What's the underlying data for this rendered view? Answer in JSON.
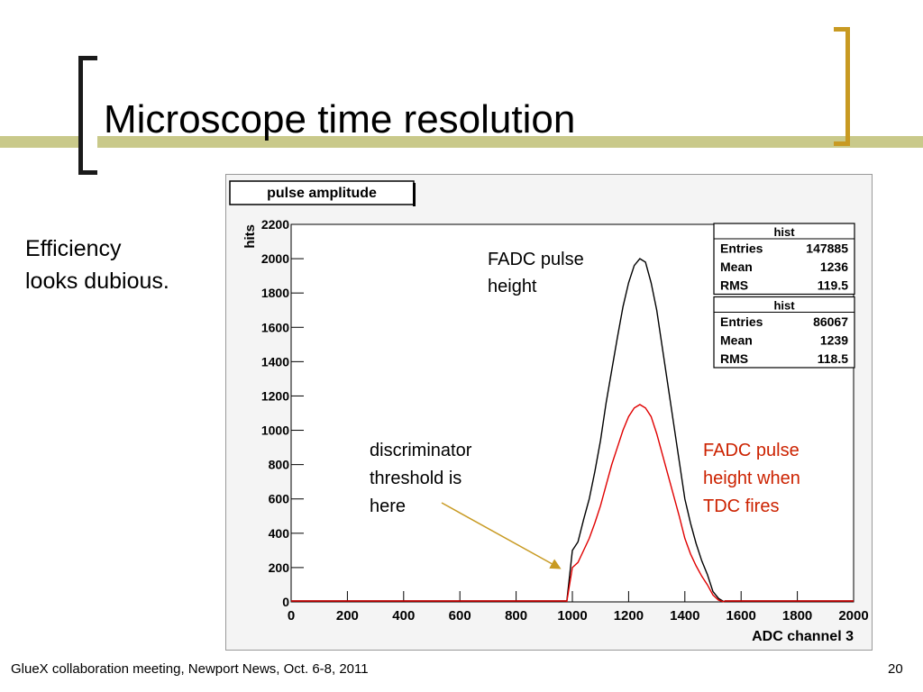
{
  "slide": {
    "title": "Microscope time resolution",
    "side_note": [
      "Efficiency",
      "looks dubious."
    ],
    "footer": "GlueX collaboration meeting, Newport News, Oct. 6-8, 2011",
    "page_number": "20"
  },
  "colors": {
    "title_bar": "#c9c98a",
    "bracket_right": "#c89a22",
    "series_all": "#000000",
    "series_tdc": "#e00000",
    "annotation_red": "#cc2200",
    "arrow": "#c89a22"
  },
  "chart_data": {
    "type": "histogram",
    "title": "pulse amplitude",
    "xlabel": "ADC channel 3",
    "ylabel": "hits",
    "xlim": [
      0,
      2000
    ],
    "ylim": [
      0,
      2200
    ],
    "xticks": [
      "0",
      "200",
      "400",
      "600",
      "800",
      "1000",
      "1200",
      "1400",
      "1600",
      "1800",
      "2000"
    ],
    "yticks": [
      "0",
      "200",
      "400",
      "600",
      "800",
      "1000",
      "1200",
      "1400",
      "1600",
      "1800",
      "2000",
      "2200"
    ],
    "stats_boxes": [
      {
        "name": "hist",
        "rows": [
          {
            "k": "Entries",
            "v": "147885"
          },
          {
            "k": "Mean",
            "v": "1236"
          },
          {
            "k": "RMS",
            "v": "119.5"
          }
        ]
      },
      {
        "name": "hist",
        "rows": [
          {
            "k": "Entries",
            "v": "86067"
          },
          {
            "k": "Mean",
            "v": "1239"
          },
          {
            "k": "RMS",
            "v": "118.5"
          }
        ]
      }
    ],
    "series": [
      {
        "color": "#000000",
        "x": [
          980,
          1000,
          1020,
          1040,
          1060,
          1080,
          1100,
          1120,
          1140,
          1160,
          1180,
          1200,
          1220,
          1240,
          1260,
          1280,
          1300,
          1320,
          1340,
          1360,
          1380,
          1400,
          1420,
          1440,
          1460,
          1480,
          1500,
          1520,
          1540
        ],
        "y": [
          0,
          300,
          350,
          480,
          600,
          760,
          940,
          1160,
          1350,
          1540,
          1720,
          1860,
          1960,
          2000,
          1980,
          1860,
          1700,
          1480,
          1260,
          1040,
          820,
          600,
          460,
          340,
          240,
          160,
          60,
          20,
          0
        ]
      },
      {
        "color": "#e00000",
        "x": [
          980,
          1000,
          1020,
          1040,
          1060,
          1080,
          1100,
          1120,
          1140,
          1160,
          1180,
          1200,
          1220,
          1240,
          1260,
          1280,
          1300,
          1320,
          1340,
          1360,
          1380,
          1400,
          1420,
          1440,
          1460,
          1480,
          1500,
          1520,
          1540
        ],
        "y": [
          0,
          200,
          230,
          300,
          370,
          460,
          560,
          680,
          800,
          900,
          1000,
          1080,
          1130,
          1150,
          1130,
          1080,
          980,
          860,
          740,
          620,
          500,
          370,
          280,
          210,
          150,
          100,
          40,
          10,
          0
        ]
      }
    ],
    "annotations": [
      {
        "id": "black",
        "lines": [
          "FADC pulse",
          "height"
        ]
      },
      {
        "id": "threshold",
        "lines": [
          "discriminator",
          "threshold is",
          "here"
        ]
      },
      {
        "id": "red",
        "lines": [
          "FADC pulse",
          "height when",
          "TDC fires"
        ]
      }
    ]
  }
}
